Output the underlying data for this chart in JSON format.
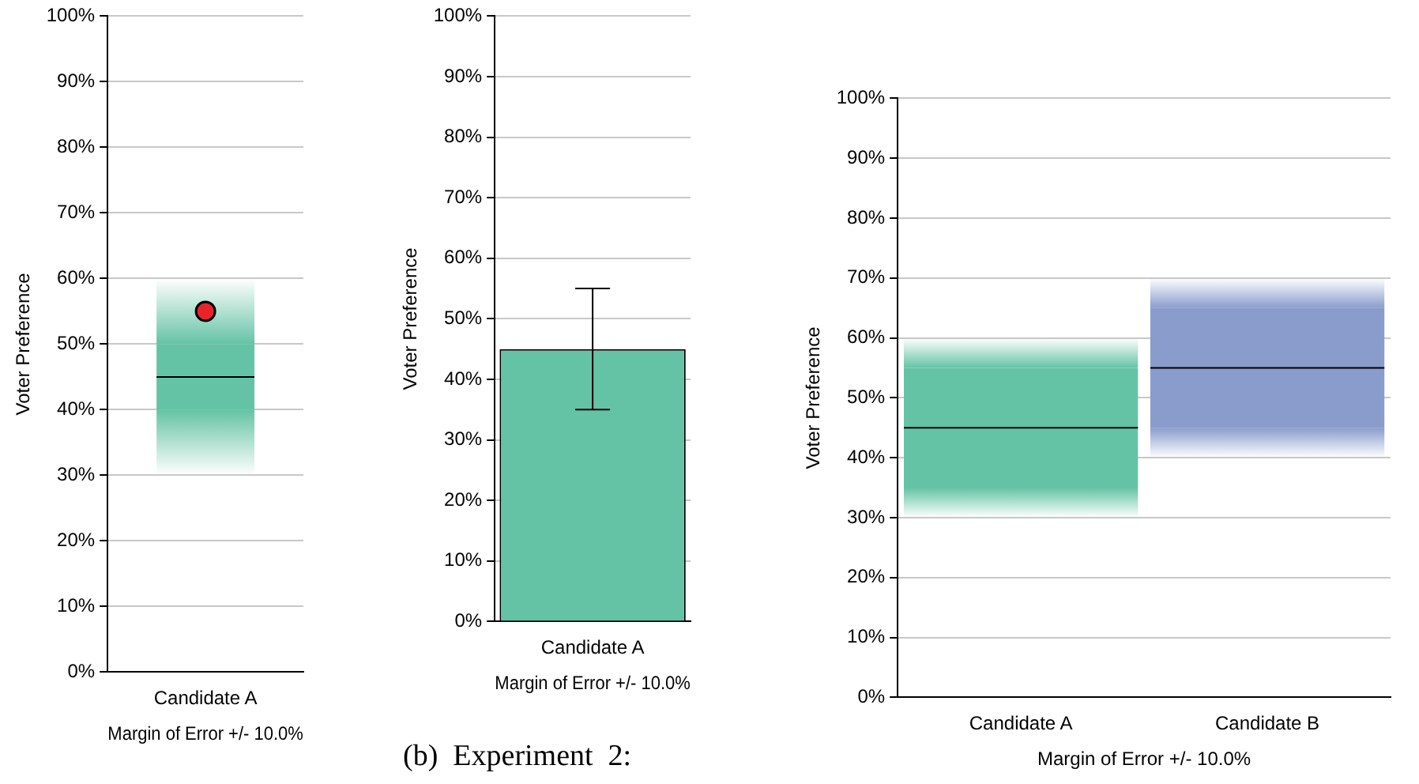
{
  "chart_data": [
    {
      "type": "box",
      "ylabel": "Voter Preference",
      "xlabel": "Margin of Error +/- 10.0%",
      "categories": [
        "Candidate A"
      ],
      "boxes": [
        {
          "low": 30,
          "q1": 40,
          "median": 45,
          "q3": 50,
          "high": 60
        }
      ],
      "colors": [
        "#64c3a4"
      ],
      "series": [
        {
          "type": "scatter",
          "x": [
            "Candidate A"
          ],
          "values": [
            55
          ],
          "color": "#e8242a"
        }
      ],
      "marker": "circle",
      "ylim": [
        0,
        100
      ],
      "yticks": [
        {
          "value": 0,
          "label": "0%"
        },
        {
          "value": 10,
          "label": "10%"
        },
        {
          "value": 20,
          "label": "20%"
        },
        {
          "value": 30,
          "label": "30%"
        },
        {
          "value": 40,
          "label": "40%"
        },
        {
          "value": 50,
          "label": "50%"
        },
        {
          "value": 60,
          "label": "60%"
        },
        {
          "value": 70,
          "label": "70%"
        },
        {
          "value": 80,
          "label": "80%"
        },
        {
          "value": 90,
          "label": "90%"
        },
        {
          "value": 100,
          "label": "100%"
        }
      ],
      "grid": "y",
      "legend": false
    },
    {
      "type": "bar",
      "ylabel": "Voter Preference",
      "xlabel": "Margin of Error +/- 10.0%",
      "categories": [
        "Candidate A"
      ],
      "values": [
        45
      ],
      "errors": [
        10
      ],
      "color": "#64c3a4",
      "annotations": [
        "(b)  Experiment  2:"
      ],
      "ylim": [
        0,
        100
      ],
      "yticks": [
        {
          "value": 0,
          "label": "0%"
        },
        {
          "value": 10,
          "label": "10%"
        },
        {
          "value": 20,
          "label": "20%"
        },
        {
          "value": 30,
          "label": "30%"
        },
        {
          "value": 40,
          "label": "40%"
        },
        {
          "value": 50,
          "label": "50%"
        },
        {
          "value": 60,
          "label": "60%"
        },
        {
          "value": 70,
          "label": "70%"
        },
        {
          "value": 80,
          "label": "80%"
        },
        {
          "value": 90,
          "label": "90%"
        },
        {
          "value": 100,
          "label": "100%"
        }
      ],
      "grid": "y",
      "legend": false
    },
    {
      "type": "box",
      "ylabel": "Voter Preference",
      "xlabel": "Margin of Error +/- 10.0%",
      "categories": [
        "Candidate A",
        "Candidate B"
      ],
      "boxes": [
        {
          "low": 30,
          "q1": 35,
          "median": 45,
          "q3": 55,
          "high": 60
        },
        {
          "low": 40,
          "q1": 45,
          "median": 55,
          "q3": 65,
          "high": 70
        }
      ],
      "colors": [
        "#64c3a4",
        "#8a9ccc"
      ],
      "ylim": [
        0,
        100
      ],
      "yticks": [
        {
          "value": 0,
          "label": "0%"
        },
        {
          "value": 10,
          "label": "10%"
        },
        {
          "value": 20,
          "label": "20%"
        },
        {
          "value": 30,
          "label": "30%"
        },
        {
          "value": 40,
          "label": "40%"
        },
        {
          "value": 50,
          "label": "50%"
        },
        {
          "value": 60,
          "label": "60%"
        },
        {
          "value": 70,
          "label": "70%"
        },
        {
          "value": 80,
          "label": "80%"
        },
        {
          "value": 90,
          "label": "90%"
        },
        {
          "value": 100,
          "label": "100%"
        }
      ],
      "grid": "y",
      "legend": false
    }
  ]
}
